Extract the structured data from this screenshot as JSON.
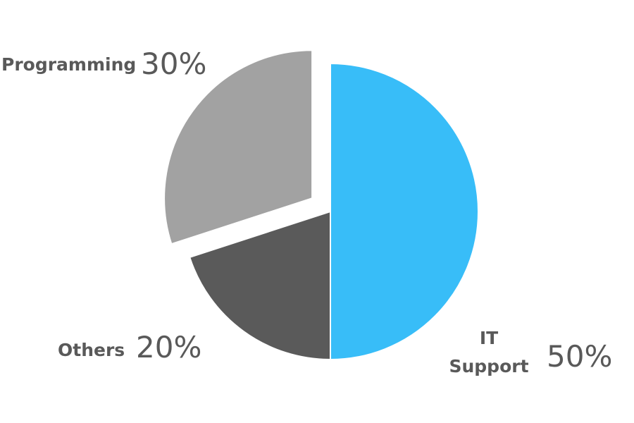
{
  "chart_data": {
    "type": "pie",
    "title": "",
    "slices": [
      {
        "label": "IT Support",
        "value": 50,
        "value_label": "50%",
        "color": "#38BDF8"
      },
      {
        "label": "Others",
        "value": 20,
        "value_label": "20%",
        "color": "#5A5A5A"
      },
      {
        "label": "Programming",
        "value": 30,
        "value_label": "30%",
        "color": "#A2A2A2"
      }
    ],
    "exploded": [
      "Programming"
    ],
    "start_angle": "12 o'clock",
    "direction": "clockwise",
    "legend": "none"
  }
}
